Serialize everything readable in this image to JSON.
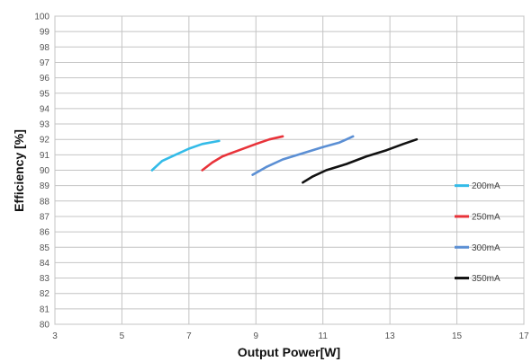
{
  "chart_data": {
    "type": "line",
    "xlabel": "Output Power[W]",
    "ylabel": "Efficiency [%]",
    "xlim": [
      3,
      17
    ],
    "ylim": [
      80,
      100
    ],
    "xticks": [
      3,
      5,
      7,
      9,
      11,
      13,
      15,
      17
    ],
    "yticks": [
      80,
      81,
      82,
      83,
      84,
      85,
      86,
      87,
      88,
      89,
      90,
      91,
      92,
      93,
      94,
      95,
      96,
      97,
      98,
      99,
      100
    ],
    "grid": true,
    "legend_position": "right",
    "series": [
      {
        "name": "200mA",
        "color": "#33bbe8",
        "points": [
          [
            5.9,
            90.0
          ],
          [
            6.2,
            90.6
          ],
          [
            6.6,
            91.0
          ],
          [
            7.0,
            91.4
          ],
          [
            7.4,
            91.7
          ],
          [
            7.9,
            91.9
          ]
        ]
      },
      {
        "name": "250mA",
        "color": "#e8333a",
        "points": [
          [
            7.4,
            90.0
          ],
          [
            7.7,
            90.5
          ],
          [
            8.0,
            90.9
          ],
          [
            8.5,
            91.3
          ],
          [
            9.0,
            91.7
          ],
          [
            9.4,
            92.0
          ],
          [
            9.8,
            92.2
          ]
        ]
      },
      {
        "name": "300mA",
        "color": "#5b8fd4",
        "points": [
          [
            8.9,
            89.7
          ],
          [
            9.3,
            90.2
          ],
          [
            9.8,
            90.7
          ],
          [
            10.4,
            91.1
          ],
          [
            11.0,
            91.5
          ],
          [
            11.5,
            91.8
          ],
          [
            11.9,
            92.2
          ]
        ]
      },
      {
        "name": "350mA",
        "color": "#111111",
        "points": [
          [
            10.4,
            89.2
          ],
          [
            10.7,
            89.6
          ],
          [
            11.1,
            90.0
          ],
          [
            11.7,
            90.4
          ],
          [
            12.3,
            90.9
          ],
          [
            12.9,
            91.3
          ],
          [
            13.4,
            91.7
          ],
          [
            13.8,
            92.0
          ]
        ]
      }
    ]
  }
}
